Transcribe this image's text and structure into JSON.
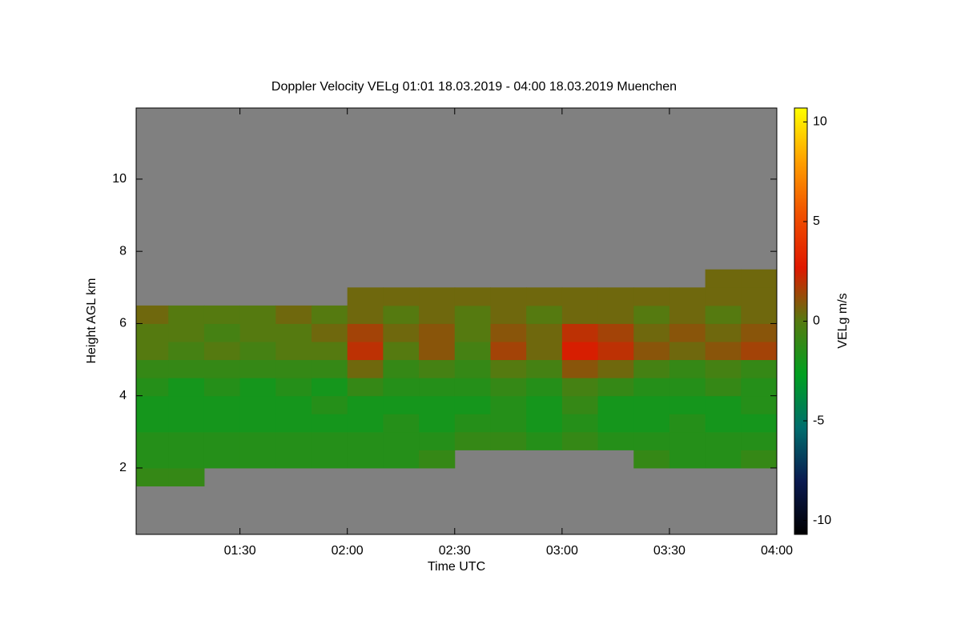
{
  "chart_data": {
    "type": "heatmap",
    "title": "Doppler Velocity VELg   01:01 18.03.2019 - 04:00 18.03.2019 Muenchen",
    "x_label": "Time UTC",
    "y_label": "Height AGL km",
    "colorbar_label": "VELg m/s",
    "xlim": [
      61,
      240
    ],
    "xticks": [
      {
        "value": 90,
        "label": "01:30"
      },
      {
        "value": 120,
        "label": "02:00"
      },
      {
        "value": 150,
        "label": "02:30"
      },
      {
        "value": 180,
        "label": "03:00"
      },
      {
        "value": 210,
        "label": "03:30"
      },
      {
        "value": 240,
        "label": "04:00"
      }
    ],
    "ylim": [
      0.16,
      11.97
    ],
    "yticks": [
      2,
      4,
      6,
      8,
      10
    ],
    "clim": [
      -10.7,
      10.7
    ],
    "cticks": [
      -10,
      -5,
      0,
      5,
      10
    ],
    "colormap": [
      "#000000",
      "#0a1a50",
      "#006d6d",
      "#00a020",
      "#557a10",
      "#e01800",
      "#f05000",
      "#ffa000",
      "#ffff00"
    ],
    "background": "#808080",
    "x_bins": [
      61,
      70,
      80,
      90,
      100,
      110,
      120,
      130,
      140,
      150,
      160,
      170,
      180,
      190,
      200,
      210,
      220,
      230,
      240
    ],
    "y_bins": [
      1.5,
      2,
      2.5,
      3,
      3.5,
      4,
      4.5,
      5,
      5.5,
      6,
      6.5,
      7,
      7.5
    ],
    "values": [
      [
        -1,
        -1,
        null,
        null,
        null,
        null,
        null,
        null,
        null,
        null,
        null,
        null,
        null,
        null,
        null,
        null,
        null,
        null
      ],
      [
        -1.5,
        -1.5,
        -1.5,
        -1.5,
        -1.5,
        -1.5,
        -1.5,
        -1.5,
        -1,
        null,
        null,
        null,
        null,
        null,
        -1,
        -1.5,
        -1.5,
        -1
      ],
      [
        -1.5,
        -1.5,
        -1.5,
        -1.5,
        -1.5,
        -1.5,
        -1.5,
        -1.5,
        -1.5,
        -1,
        -1,
        -1.5,
        -1,
        -1.5,
        -1.5,
        -1.5,
        -1.5,
        -1.5
      ],
      [
        -2,
        -2,
        -2,
        -2,
        -2,
        -2,
        -2,
        -1.5,
        -2,
        -1.5,
        -1.5,
        -2,
        -1.5,
        -2,
        -2,
        -1.5,
        -2,
        -2
      ],
      [
        -2,
        -2,
        -2,
        -2,
        -2,
        -1.5,
        -2,
        -2,
        -2,
        -2,
        -1.5,
        -2,
        -1,
        -2,
        -2,
        -2,
        -2,
        -1.5
      ],
      [
        -1.5,
        -2,
        -1.5,
        -2,
        -1.5,
        -2,
        -1,
        -1.5,
        -1.5,
        -1.5,
        -1,
        -1.5,
        -0.5,
        -1,
        -1.5,
        -1.5,
        -1,
        -1.5
      ],
      [
        -1,
        -1,
        -1,
        -1,
        -1,
        -1,
        0.5,
        -1,
        -0.5,
        -1,
        0,
        -0.5,
        1,
        0.5,
        -0.5,
        -1,
        -0.5,
        -1
      ],
      [
        0,
        -0.5,
        0,
        -0.5,
        0,
        0,
        2,
        0,
        1,
        -0.5,
        1.5,
        0.5,
        2.5,
        2,
        1,
        0.5,
        1,
        1.5
      ],
      [
        0,
        0,
        -0.5,
        0,
        0,
        0.5,
        1.5,
        0.5,
        1,
        0,
        1,
        0.5,
        2,
        1.5,
        0.5,
        1,
        0.5,
        1
      ],
      [
        0.5,
        0,
        0,
        0,
        0.5,
        0,
        0.5,
        0,
        0.5,
        0,
        0.5,
        0,
        0.5,
        0.5,
        0,
        0.5,
        0,
        0.5
      ],
      [
        null,
        null,
        null,
        null,
        null,
        null,
        0.5,
        0.5,
        0.5,
        0.5,
        0.5,
        0.5,
        0.5,
        0.5,
        0.5,
        0.5,
        0.5,
        0.5
      ],
      [
        null,
        null,
        null,
        null,
        null,
        null,
        null,
        null,
        null,
        null,
        null,
        null,
        null,
        null,
        null,
        null,
        0.5,
        0.5
      ]
    ]
  }
}
